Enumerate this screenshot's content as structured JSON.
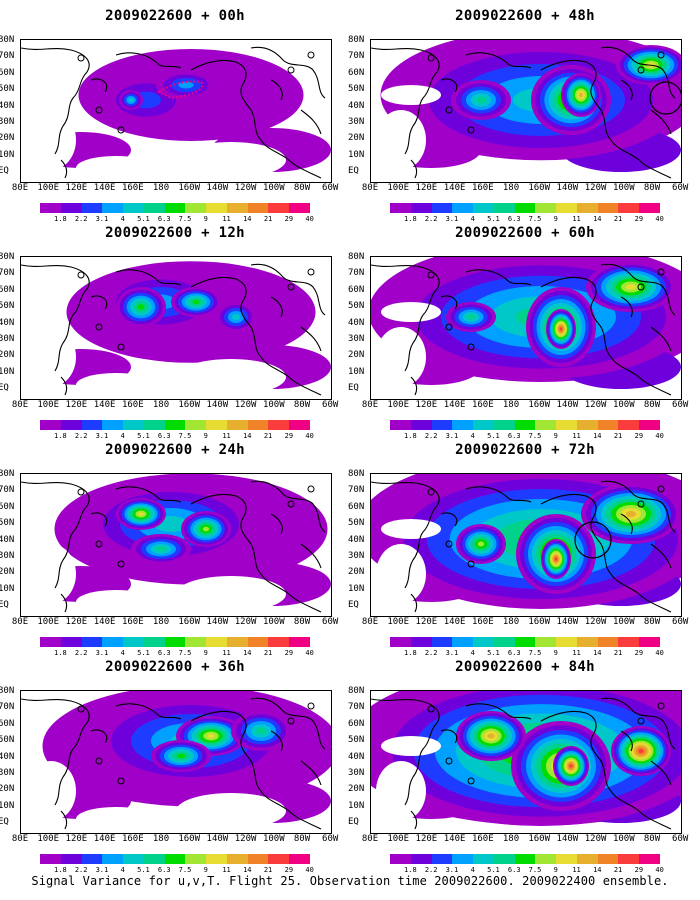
{
  "footer": "Signal Variance for u,v,T. Flight 25. Observation time 2009022600. 2009022400 ensemble.",
  "lat_labels": [
    "80N",
    "70N",
    "60N",
    "50N",
    "40N",
    "30N",
    "20N",
    "10N",
    "EQ"
  ],
  "lon_labels": [
    "80E",
    "100E",
    "120E",
    "140E",
    "160E",
    "180",
    "160W",
    "140W",
    "120W",
    "100W",
    "80W",
    "60W"
  ],
  "colorbar": {
    "levels": [
      "1.8",
      "2.2",
      "3.1",
      "4",
      "5.1",
      "6.3",
      "7.5",
      "9",
      "11",
      "14",
      "21",
      "29",
      "40"
    ],
    "colors": [
      "#a000c8",
      "#6e00dc",
      "#1e3cff",
      "#00a0ff",
      "#00c8c8",
      "#00d28c",
      "#00dc00",
      "#a0e632",
      "#e6dc32",
      "#e6af2d",
      "#f08228",
      "#fa3c3c",
      "#f00082"
    ]
  },
  "panels": [
    {
      "title": "2009022600 + 00h",
      "intensity": 0,
      "col": 0,
      "row": 0,
      "circles": []
    },
    {
      "title": "2009022600 + 48h",
      "intensity": 4,
      "col": 1,
      "row": 0,
      "circles": [
        "top-right"
      ]
    },
    {
      "title": "2009022600 + 12h",
      "intensity": 1,
      "col": 0,
      "row": 1,
      "circles": []
    },
    {
      "title": "2009022600 + 60h",
      "intensity": 5,
      "col": 1,
      "row": 1,
      "circles": []
    },
    {
      "title": "2009022600 + 24h",
      "intensity": 2,
      "col": 0,
      "row": 2,
      "circles": []
    },
    {
      "title": "2009022600 + 72h",
      "intensity": 6,
      "col": 1,
      "row": 2,
      "circles": [
        "center"
      ]
    },
    {
      "title": "2009022600 + 36h",
      "intensity": 3,
      "col": 0,
      "row": 3,
      "circles": []
    },
    {
      "title": "2009022600 + 84h",
      "intensity": 7,
      "col": 1,
      "row": 3,
      "circles": []
    }
  ]
}
